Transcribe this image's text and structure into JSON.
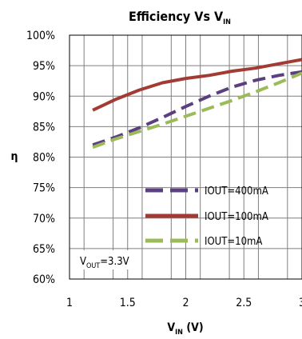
{
  "chart_data": {
    "type": "line",
    "title": {
      "main": "Efficiency Vs  V",
      "sub": "IN"
    },
    "xlabel": {
      "main": "V",
      "sub": "IN",
      "rest": " (V)"
    },
    "ylabel": "η",
    "xlim": [
      1,
      3
    ],
    "ylim": [
      60,
      100
    ],
    "xticks": [
      1,
      1.5,
      2,
      2.5,
      3
    ],
    "xtick_labels": [
      "1",
      "1.5",
      "2",
      "2.5",
      "3"
    ],
    "yticks": [
      60,
      65,
      70,
      75,
      80,
      85,
      90,
      95,
      100
    ],
    "ytick_labels": [
      "60%",
      "65%",
      "70%",
      "75%",
      "80%",
      "85%",
      "90%",
      "95%",
      "100%"
    ],
    "grid": true,
    "legend_position": "bottom-right",
    "annotation": {
      "main": "V",
      "sub": "OUT",
      "rest": "=3.3V"
    },
    "series": [
      {
        "name": "IOUT=400mA",
        "color": "#5B3F80",
        "style": "dash",
        "x": [
          1.2,
          1.4,
          1.6,
          1.8,
          2.0,
          2.2,
          2.4,
          2.6,
          2.8,
          3.0
        ],
        "y": [
          82.0,
          83.3,
          84.8,
          86.5,
          88.3,
          90.0,
          91.5,
          92.6,
          93.4,
          94.0
        ]
      },
      {
        "name": "IOUT=100mA",
        "color": "#A33B35",
        "style": "solid",
        "x": [
          1.2,
          1.4,
          1.6,
          1.8,
          2.0,
          2.2,
          2.4,
          2.6,
          2.8,
          3.0
        ],
        "y": [
          87.7,
          89.5,
          91.0,
          92.2,
          92.9,
          93.4,
          94.1,
          94.6,
          95.3,
          96.0
        ]
      },
      {
        "name": "IOUT=10mA",
        "color": "#9BBB59",
        "style": "dash",
        "x": [
          1.2,
          1.4,
          1.6,
          1.8,
          2.0,
          2.2,
          2.4,
          2.6,
          2.8,
          3.0
        ],
        "y": [
          81.6,
          83.0,
          84.2,
          85.4,
          86.7,
          88.0,
          89.3,
          90.7,
          92.2,
          93.8
        ]
      }
    ]
  }
}
